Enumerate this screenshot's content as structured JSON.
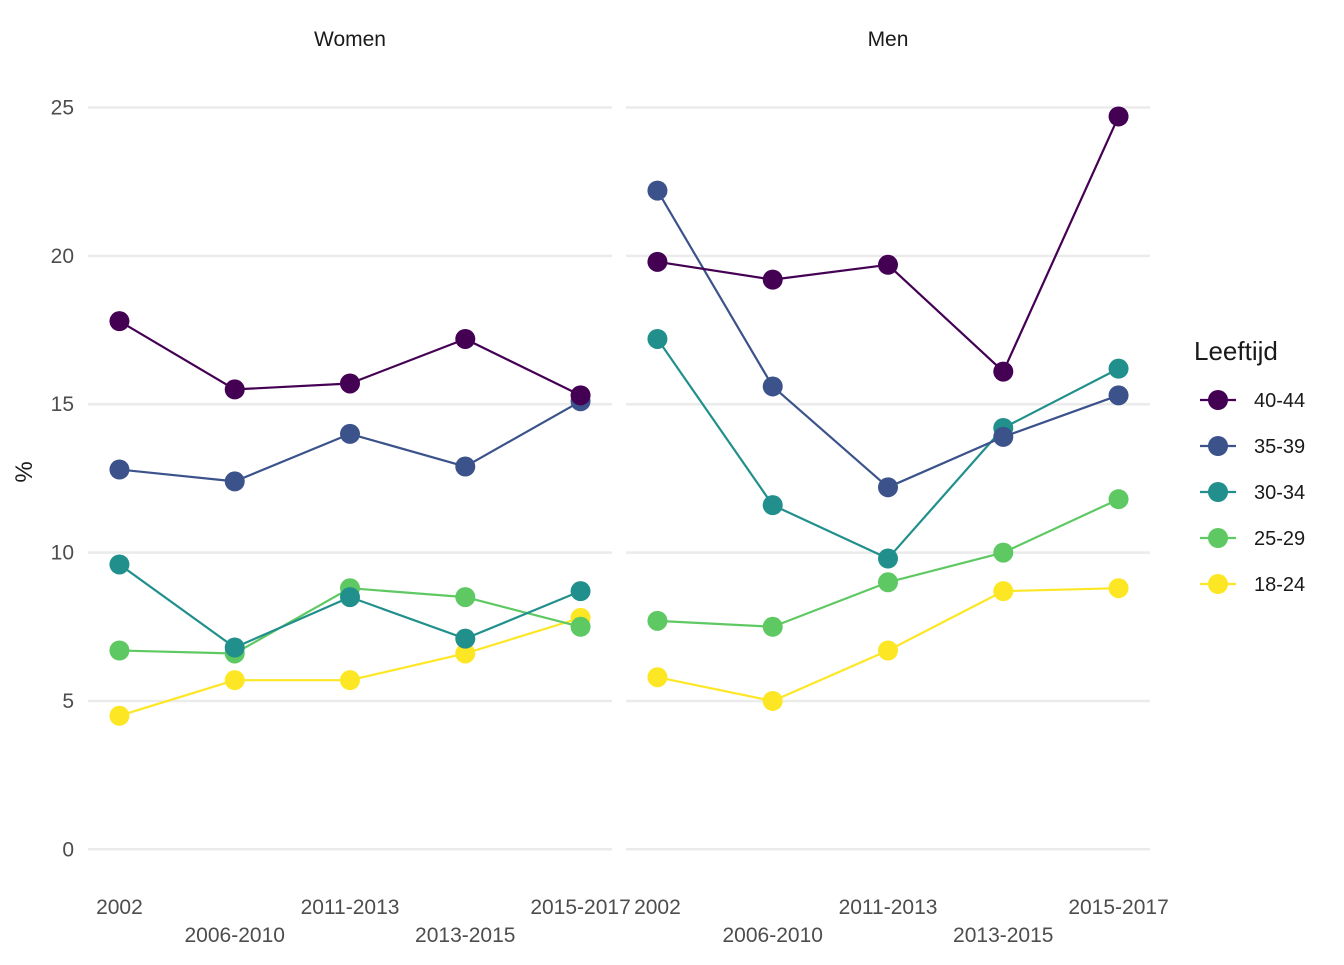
{
  "chart_data": {
    "type": "line",
    "ylabel": "%",
    "xlabel": "",
    "ylim": [
      -0.9,
      26.4
    ],
    "yticks": [
      "0",
      "5",
      "10",
      "15",
      "20",
      "25"
    ],
    "categories": [
      "2002",
      "2006-2010",
      "2011-2013",
      "2013-2015",
      "2015-2017"
    ],
    "grid": true,
    "legend": {
      "title": "Leeftijd",
      "position": "right",
      "entries": [
        "40-44",
        "35-39",
        "30-34",
        "25-29",
        "18-24"
      ]
    },
    "colors": {
      "40-44": "#440154",
      "35-39": "#3b528b",
      "30-34": "#21908c",
      "25-29": "#5ec962",
      "18-24": "#fde725"
    },
    "panels": [
      {
        "name": "Women",
        "series": [
          {
            "name": "18-24",
            "values": [
              4.5,
              5.7,
              5.7,
              6.6,
              7.8
            ]
          },
          {
            "name": "25-29",
            "values": [
              6.7,
              6.6,
              8.8,
              8.5,
              7.5
            ]
          },
          {
            "name": "30-34",
            "values": [
              9.6,
              6.8,
              8.5,
              7.1,
              8.7
            ]
          },
          {
            "name": "35-39",
            "values": [
              12.8,
              12.4,
              14.0,
              12.9,
              15.1
            ]
          },
          {
            "name": "40-44",
            "values": [
              17.8,
              15.5,
              15.7,
              17.2,
              15.3
            ]
          }
        ]
      },
      {
        "name": "Men",
        "series": [
          {
            "name": "18-24",
            "values": [
              5.8,
              5.0,
              6.7,
              8.7,
              8.8
            ]
          },
          {
            "name": "25-29",
            "values": [
              7.7,
              7.5,
              9.0,
              10.0,
              11.8
            ]
          },
          {
            "name": "30-34",
            "values": [
              17.2,
              11.6,
              9.8,
              14.2,
              16.2
            ]
          },
          {
            "name": "35-39",
            "values": [
              22.2,
              15.6,
              12.2,
              13.9,
              15.3
            ]
          },
          {
            "name": "40-44",
            "values": [
              19.8,
              19.2,
              19.7,
              16.1,
              24.7
            ]
          }
        ]
      }
    ]
  }
}
